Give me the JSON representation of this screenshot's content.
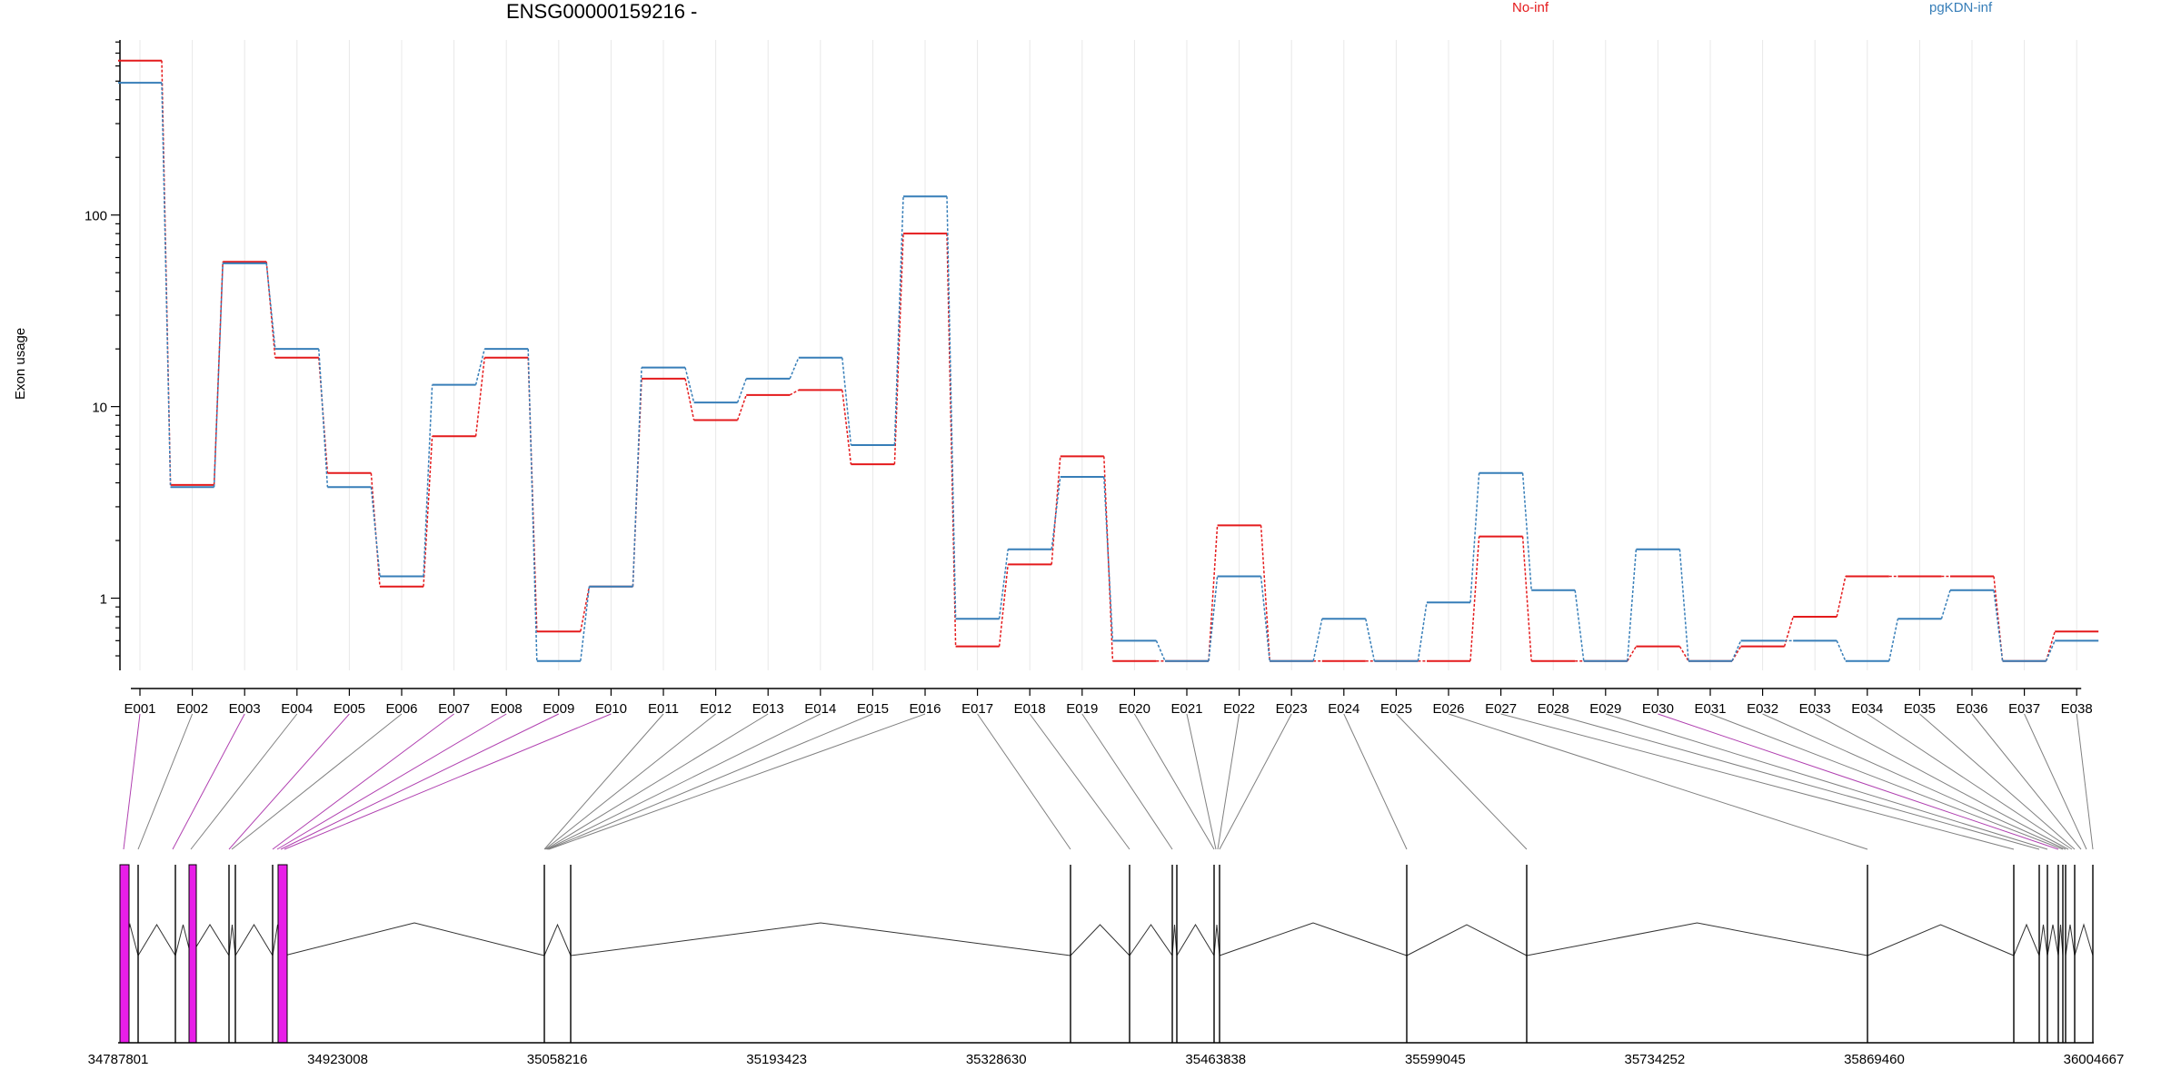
{
  "chart_data": {
    "type": "line",
    "title": "ENSG00000159216 -",
    "ylabel": "Exon usage",
    "yscale": "log",
    "ylim": [
      0.42,
      820
    ],
    "yticks": [
      1,
      10,
      100
    ],
    "ytick_labels": [
      "1",
      "10",
      "100"
    ],
    "grid": "vertical",
    "legend": "top",
    "categories": [
      "E001",
      "E002",
      "E003",
      "E004",
      "E005",
      "E006",
      "E007",
      "E008",
      "E009",
      "E010",
      "E011",
      "E012",
      "E013",
      "E014",
      "E015",
      "E016",
      "E017",
      "E018",
      "E019",
      "E020",
      "E021",
      "E022",
      "E023",
      "E024",
      "E025",
      "E026",
      "E027",
      "E028",
      "E029",
      "E030",
      "E031",
      "E032",
      "E033",
      "E034",
      "E035",
      "E036",
      "E037",
      "E038"
    ],
    "series": [
      {
        "name": "No-inf",
        "color": "#e41a1c",
        "values": [
          640,
          3.9,
          57,
          18,
          4.5,
          1.15,
          7,
          18,
          0.67,
          1.15,
          14,
          8.5,
          11.5,
          12.2,
          5,
          80,
          0.56,
          1.5,
          5.5,
          0.47,
          0.47,
          2.4,
          0.47,
          0.47,
          0.47,
          0.47,
          2.1,
          0.47,
          0.47,
          0.56,
          0.47,
          0.56,
          0.8,
          1.3,
          1.3,
          1.3,
          0.47,
          0.67
        ]
      },
      {
        "name": "pgKDN-inf",
        "color": "#377eb8",
        "values": [
          490,
          3.8,
          56,
          20,
          3.8,
          1.3,
          13,
          20,
          0.47,
          1.15,
          16,
          10.5,
          14,
          18,
          6.3,
          125,
          0.78,
          1.8,
          4.3,
          0.6,
          0.47,
          1.3,
          0.47,
          0.78,
          0.47,
          0.95,
          4.5,
          1.1,
          0.47,
          1.8,
          0.47,
          0.6,
          0.6,
          0.47,
          0.78,
          1.1,
          0.47,
          0.6
        ]
      }
    ],
    "exon_highlight": [
      true,
      false,
      true,
      false,
      true,
      false,
      true,
      true,
      true,
      true,
      false,
      false,
      false,
      false,
      false,
      false,
      false,
      false,
      false,
      false,
      false,
      false,
      false,
      false,
      false,
      false,
      false,
      false,
      false,
      true,
      false,
      false,
      false,
      false,
      false,
      false,
      false,
      false
    ],
    "genomic_axis_labels": [
      "34787801",
      "34923008",
      "35058216",
      "35193423",
      "35328630",
      "35463838",
      "35599045",
      "35734252",
      "35869460",
      "36004667"
    ]
  },
  "colors": {
    "highlight": "#e81ee8",
    "grid": "#e8e8e8",
    "line": "#000000"
  }
}
